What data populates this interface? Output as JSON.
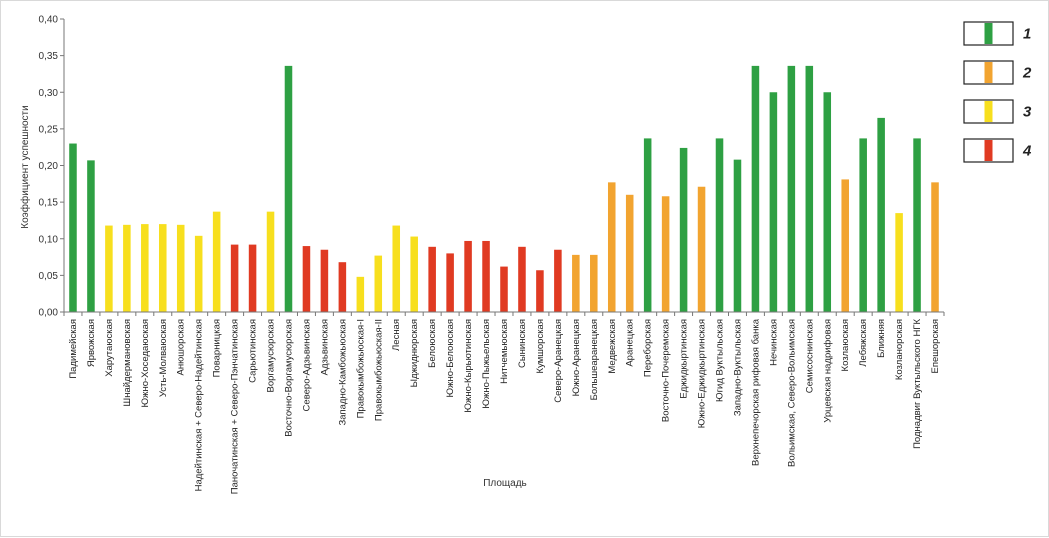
{
  "chart_data": {
    "type": "bar",
    "title": "",
    "xlabel": "Площадь",
    "ylabel": "Коэффициент успешности",
    "ylim": [
      0,
      0.4
    ],
    "yticks": [
      "0,00",
      "0,05",
      "0,10",
      "0,15",
      "0,20",
      "0,25",
      "0,30",
      "0,35",
      "0,40"
    ],
    "grid": false,
    "legend_position": "right",
    "legend": [
      {
        "label": "1",
        "color": "#2ea043"
      },
      {
        "label": "2",
        "color": "#f2a430"
      },
      {
        "label": "3",
        "color": "#f7df1e"
      },
      {
        "label": "4",
        "color": "#e03a22"
      }
    ],
    "categories": [
      "Падимейская",
      "Ярвожская",
      "Харутаюская",
      "Шнайдермановская",
      "Южно-Хоседаюская",
      "Усть-Молваюская",
      "Анюшорская",
      "Надейтинская + Северо-Надейтинская",
      "Поварницкая",
      "Паночатинская + Северо-Пэнчатинская",
      "Сарьютинская",
      "Воргамусюрская",
      "Восточно-Воргамусюрская",
      "Северо-Адзьвинская",
      "Адзьвинская",
      "Западно-Камбожьюская",
      "Правокымбожьюская-I",
      "Правокымбожьюская-II",
      "Лесная",
      "Ыджиднюрская",
      "Белоюская",
      "Южно-Белоюская",
      "Южно-Кырьютинская",
      "Южно-Пыжьельская",
      "Нитчемьюская",
      "Сынинская",
      "Кумшорская",
      "Северо-Аранецкая",
      "Южно-Аранецкая",
      "Большеаранецкая",
      "Медвежская",
      "Аранецкая",
      "Переборская",
      "Восточно-Почеремская",
      "Еджидкыртинская",
      "Южно-Еджидкыртинская",
      "Югид Вуктыльская",
      "Западно-Вуктыльская",
      "Верхнепечорская рифовая банка",
      "Нечинская",
      "Вольимская, Северо-Вольимская",
      "Семисоснинская",
      "Урцевская надрифовая",
      "Козлаюская",
      "Лебяжская",
      "Ближняя",
      "Козланорская",
      "Поднадвиг Вуктыльского НГК",
      "Епешорская"
    ],
    "values": [
      0.23,
      0.207,
      0.118,
      0.119,
      0.12,
      0.12,
      0.119,
      0.104,
      0.137,
      0.092,
      0.092,
      0.137,
      0.336,
      0.09,
      0.085,
      0.068,
      0.048,
      0.077,
      0.118,
      0.103,
      0.089,
      0.08,
      0.097,
      0.097,
      0.062,
      0.089,
      0.057,
      0.085,
      0.078,
      0.078,
      0.177,
      0.16,
      0.237,
      0.158,
      0.224,
      0.171,
      0.237,
      0.208,
      0.336,
      0.3,
      0.336,
      0.336,
      0.3,
      0.181,
      0.237,
      0.265,
      0.135,
      0.237,
      0.177
    ],
    "groups": [
      1,
      1,
      3,
      3,
      3,
      3,
      3,
      3,
      3,
      4,
      4,
      3,
      1,
      4,
      4,
      4,
      3,
      3,
      3,
      3,
      4,
      4,
      4,
      4,
      4,
      4,
      4,
      4,
      2,
      2,
      2,
      2,
      1,
      2,
      1,
      2,
      1,
      1,
      1,
      1,
      1,
      1,
      1,
      2,
      1,
      1,
      3,
      1,
      2
    ]
  }
}
